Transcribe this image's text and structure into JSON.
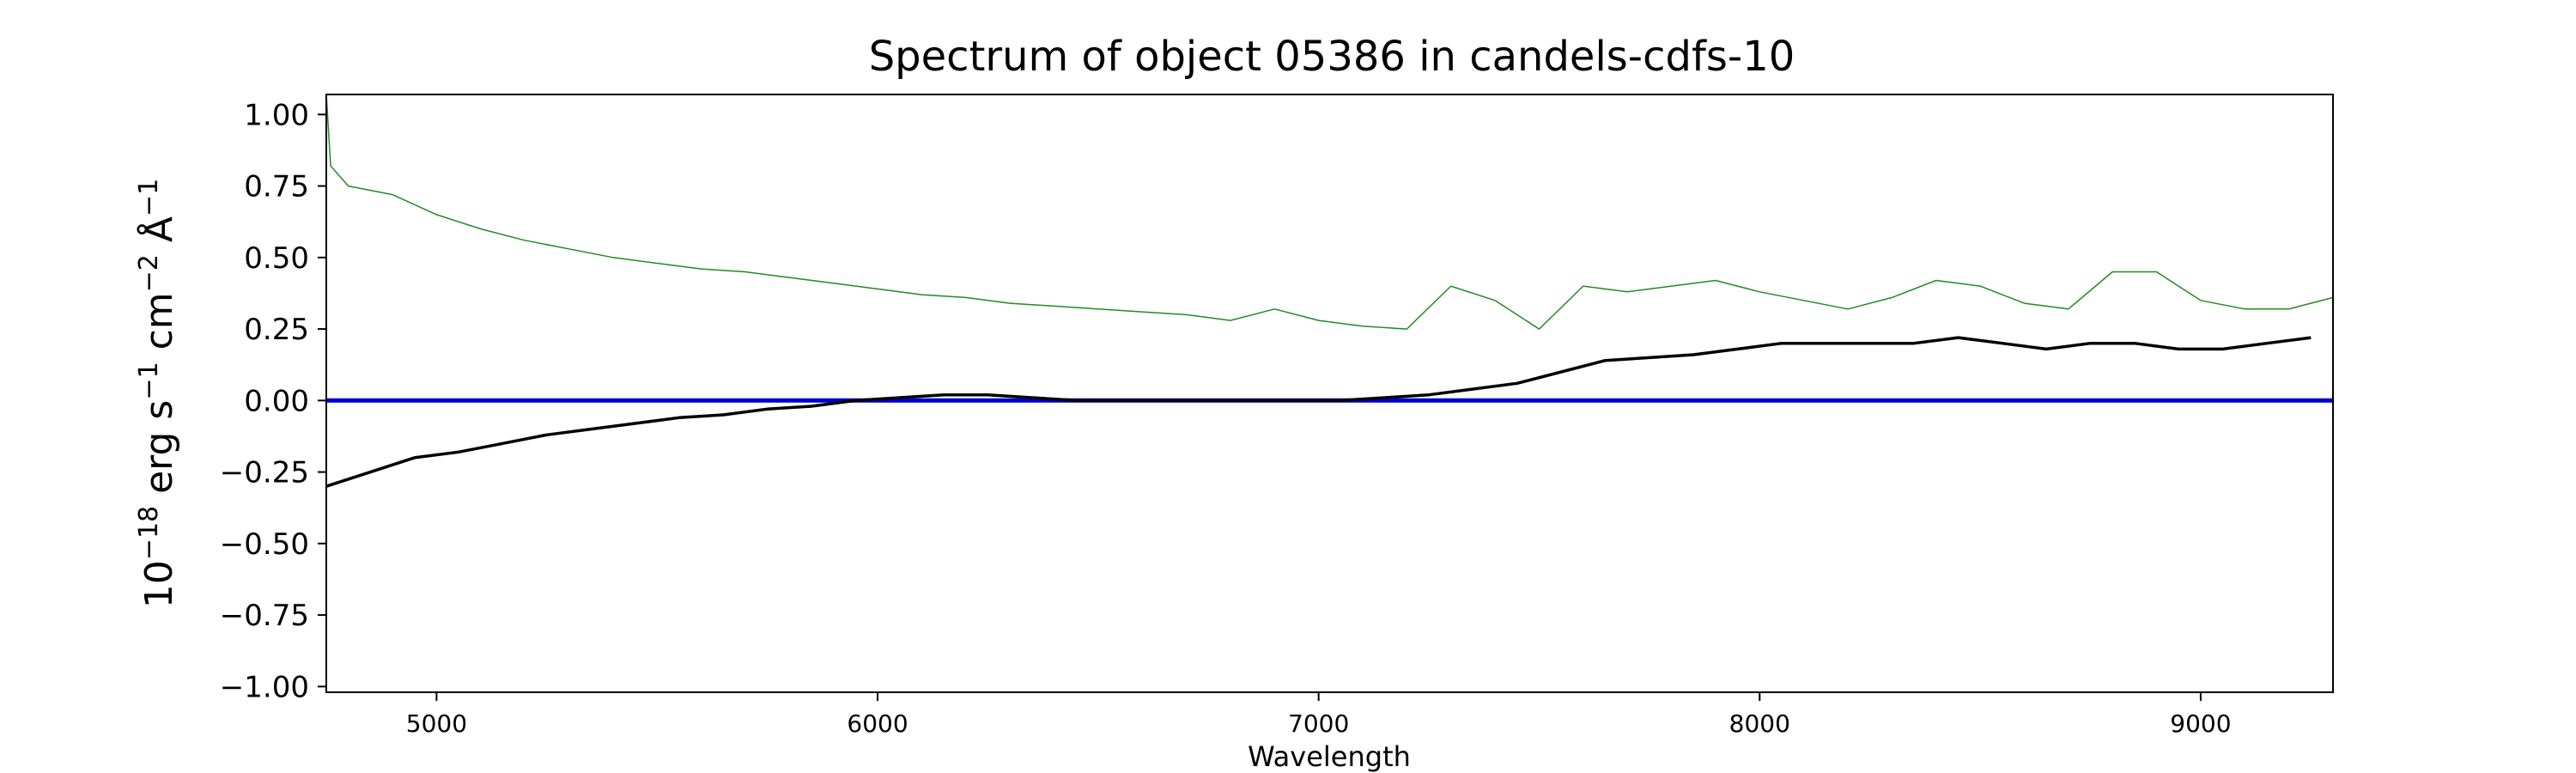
{
  "chart_data": {
    "type": "line",
    "title": "Spectrum of object 05386 in candels-cdfs-10",
    "xlabel": "Wavelength",
    "ylabel": {
      "base": "10",
      "exp1": "−18",
      "unit1": " erg s",
      "exp2": "−1",
      "unit2": " cm",
      "exp3": "−2",
      "unit3": " Å",
      "exp4": "−1"
    },
    "xlim": [
      4750,
      9300
    ],
    "ylim": [
      -1.02,
      1.07
    ],
    "xticks": [
      5000,
      6000,
      7000,
      8000,
      9000
    ],
    "xtick_labels": [
      "5000",
      "6000",
      "7000",
      "8000",
      "9000"
    ],
    "yticks": [
      -1.0,
      -0.75,
      -0.5,
      -0.25,
      0.0,
      0.25,
      0.5,
      0.75,
      1.0
    ],
    "ytick_labels": [
      "−1.00",
      "−0.75",
      "−0.50",
      "−0.25",
      "0.00",
      "0.25",
      "0.50",
      "0.75",
      "1.00"
    ],
    "grid": false,
    "colors": {
      "flux": "#000000",
      "noise": "#228b22",
      "zero": "#0000cc"
    },
    "series": [
      {
        "role": "flux",
        "x": [
          4750,
          4850,
          4950,
          5050,
          5150,
          5250,
          5350,
          5450,
          5550,
          5650,
          5750,
          5850,
          5950,
          6050,
          6150,
          6250,
          6350,
          6450,
          6550,
          6650,
          6750,
          6850,
          6950,
          7050,
          7150,
          7250,
          7350,
          7450,
          7550,
          7650,
          7750,
          7850,
          7950,
          8050,
          8150,
          8250,
          8350,
          8450,
          8550,
          8650,
          8750,
          8850,
          8950,
          9050,
          9150,
          9250
        ],
        "y": [
          -0.3,
          -0.25,
          -0.2,
          -0.18,
          -0.15,
          -0.12,
          -0.1,
          -0.08,
          -0.06,
          -0.05,
          -0.03,
          -0.02,
          0.0,
          0.01,
          0.02,
          0.02,
          0.01,
          0.0,
          0.0,
          0.0,
          0.0,
          0.0,
          0.0,
          0.0,
          0.01,
          0.02,
          0.04,
          0.06,
          0.1,
          0.14,
          0.15,
          0.16,
          0.18,
          0.2,
          0.2,
          0.2,
          0.2,
          0.22,
          0.2,
          0.18,
          0.2,
          0.2,
          0.18,
          0.18,
          0.2,
          0.22
        ]
      },
      {
        "role": "noise",
        "x": [
          4750,
          4760,
          4800,
          4900,
          5000,
          5100,
          5200,
          5300,
          5400,
          5500,
          5600,
          5700,
          5800,
          5900,
          6000,
          6100,
          6200,
          6300,
          6400,
          6500,
          6600,
          6700,
          6800,
          6900,
          7000,
          7100,
          7200,
          7300,
          7400,
          7500,
          7600,
          7700,
          7800,
          7900,
          8000,
          8100,
          8200,
          8300,
          8400,
          8500,
          8600,
          8700,
          8800,
          8900,
          9000,
          9100,
          9200,
          9300
        ],
        "y": [
          1.07,
          0.82,
          0.75,
          0.72,
          0.65,
          0.6,
          0.56,
          0.53,
          0.5,
          0.48,
          0.46,
          0.45,
          0.43,
          0.41,
          0.39,
          0.37,
          0.36,
          0.34,
          0.33,
          0.32,
          0.31,
          0.3,
          0.28,
          0.32,
          0.28,
          0.26,
          0.25,
          0.4,
          0.35,
          0.25,
          0.4,
          0.38,
          0.4,
          0.42,
          0.38,
          0.35,
          0.32,
          0.36,
          0.42,
          0.4,
          0.34,
          0.32,
          0.45,
          0.45,
          0.35,
          0.32,
          0.32,
          0.36
        ]
      },
      {
        "role": "zero",
        "x": [
          4750,
          9300
        ],
        "y": [
          0.0,
          0.0
        ]
      }
    ]
  }
}
